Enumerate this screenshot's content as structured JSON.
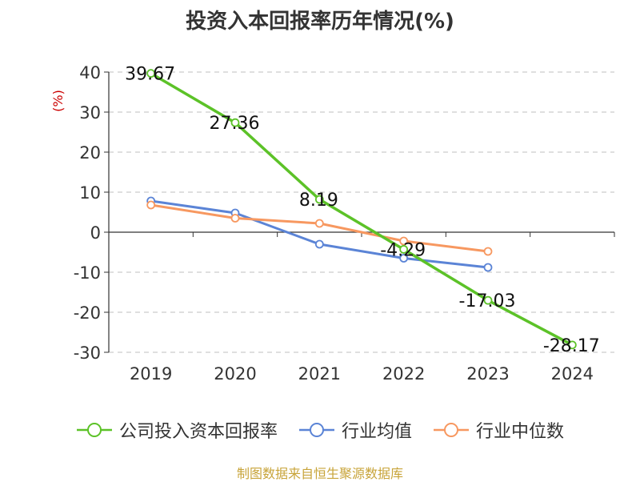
{
  "chart_data": {
    "type": "line",
    "title": "投资入本回报率历年情况(%)",
    "ylabel": "(%)",
    "xlabel": "",
    "categories": [
      "2019",
      "2020",
      "2021",
      "2022",
      "2023",
      "2024"
    ],
    "ylim": [
      -30,
      40
    ],
    "yticks": [
      40,
      30,
      20,
      10,
      0,
      -10,
      -20,
      -30
    ],
    "ytick_labels": [
      "40",
      "30",
      "20",
      "10",
      "0",
      "-10",
      "-20",
      "-30"
    ],
    "grid": true,
    "legend_position": "bottom",
    "series": [
      {
        "name": "公司投入资本回报率",
        "color": "#5cc228",
        "values": [
          39.67,
          27.36,
          8.19,
          -4.29,
          -17.03,
          -28.17
        ],
        "labels": [
          "39.67",
          "27.36",
          "8.19",
          "-4.29",
          "-17.03",
          "-28.17"
        ]
      },
      {
        "name": "行业均值",
        "color": "#5b84d6",
        "values": [
          7.8,
          4.8,
          -3.0,
          -6.5,
          -8.8,
          null
        ]
      },
      {
        "name": "行业中位数",
        "color": "#f79860",
        "values": [
          6.8,
          3.5,
          2.2,
          -2.2,
          -4.8,
          null
        ]
      }
    ]
  },
  "source_note": "制图数据来自恒生聚源数据库"
}
